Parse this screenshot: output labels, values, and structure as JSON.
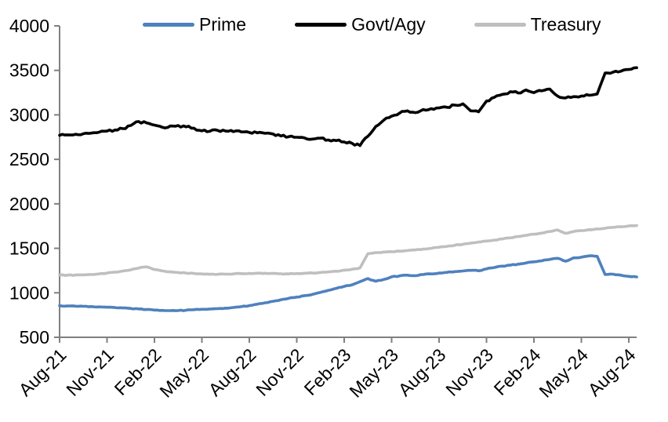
{
  "chart_data": {
    "type": "line",
    "title": "",
    "xlabel": "",
    "ylabel": "",
    "ylim": [
      500,
      4000
    ],
    "y_ticks": [
      4000,
      3500,
      3000,
      2500,
      2000,
      1500,
      1000,
      500
    ],
    "x_tick_labels": [
      "Aug-21",
      "Nov-21",
      "Feb-22",
      "May-22",
      "Aug-22",
      "Nov-22",
      "Feb-23",
      "May-23",
      "Aug-23",
      "Nov-23",
      "Feb-24",
      "May-24",
      "Aug-24"
    ],
    "x_points_per_tick": 6,
    "x_resolution": "semi-monthly (2 data points per month, Aug-21 through mid-Aug-24)",
    "grid": false,
    "legend_position": "top",
    "series": [
      {
        "name": "Prime",
        "color": "#4F81BD",
        "noise_amplitude": 4,
        "values": [
          855,
          852,
          850,
          848,
          846,
          842,
          838,
          834,
          830,
          824,
          818,
          812,
          806,
          802,
          800,
          800,
          804,
          810,
          815,
          818,
          822,
          828,
          835,
          845,
          856,
          872,
          888,
          905,
          922,
          938,
          952,
          968,
          982,
          1005,
          1028,
          1050,
          1072,
          1090,
          1125,
          1160,
          1130,
          1150,
          1180,
          1190,
          1198,
          1192,
          1205,
          1212,
          1222,
          1230,
          1238,
          1245,
          1252,
          1248,
          1270,
          1285,
          1300,
          1310,
          1322,
          1335,
          1348,
          1360,
          1375,
          1388,
          1355,
          1392,
          1400,
          1415,
          1410,
          1205,
          1210,
          1198,
          1185,
          1178
        ]
      },
      {
        "name": "Govt/Agy",
        "color": "#000000",
        "noise_amplitude": 13,
        "values": [
          2770,
          2775,
          2782,
          2788,
          2795,
          2805,
          2818,
          2830,
          2845,
          2880,
          2925,
          2910,
          2885,
          2860,
          2875,
          2880,
          2865,
          2850,
          2820,
          2815,
          2825,
          2818,
          2812,
          2808,
          2802,
          2798,
          2792,
          2785,
          2762,
          2755,
          2748,
          2740,
          2728,
          2738,
          2718,
          2710,
          2695,
          2680,
          2655,
          2760,
          2870,
          2940,
          2985,
          3020,
          3045,
          3025,
          3060,
          3070,
          3078,
          3085,
          3110,
          3125,
          3045,
          3035,
          3155,
          3198,
          3230,
          3260,
          3245,
          3280,
          3250,
          3270,
          3290,
          3210,
          3190,
          3205,
          3212,
          3220,
          3235,
          3470,
          3480,
          3490,
          3510,
          3530
        ]
      },
      {
        "name": "Treasury",
        "color": "#BFBFBF",
        "noise_amplitude": 4,
        "values": [
          1200,
          1198,
          1200,
          1202,
          1205,
          1212,
          1222,
          1232,
          1245,
          1258,
          1278,
          1292,
          1262,
          1246,
          1235,
          1228,
          1222,
          1218,
          1212,
          1208,
          1208,
          1210,
          1212,
          1215,
          1218,
          1220,
          1220,
          1218,
          1214,
          1212,
          1216,
          1220,
          1222,
          1228,
          1235,
          1242,
          1255,
          1265,
          1280,
          1440,
          1452,
          1458,
          1462,
          1468,
          1475,
          1482,
          1492,
          1500,
          1512,
          1522,
          1535,
          1545,
          1558,
          1570,
          1582,
          1592,
          1605,
          1618,
          1632,
          1645,
          1658,
          1672,
          1688,
          1707,
          1668,
          1688,
          1700,
          1710,
          1718,
          1725,
          1735,
          1742,
          1752,
          1756
        ]
      }
    ]
  },
  "axes": {
    "color": "#808080",
    "tick_label_color": "#000000"
  }
}
